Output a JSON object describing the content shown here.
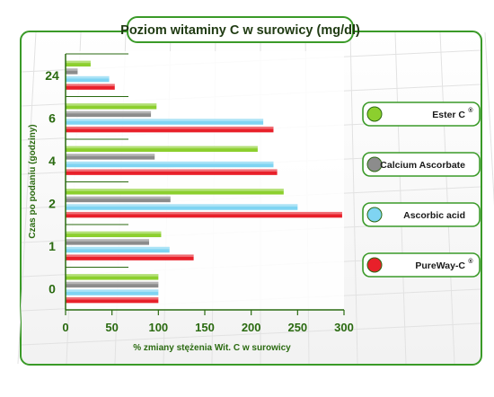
{
  "chart_data": {
    "type": "bar",
    "orientation": "horizontal",
    "title": "Poziom witaminy C w surowicy (mg/dl)",
    "xlabel": "% zmiany stężenia Wit. C w surowicy",
    "ylabel": "Czas po podaniu (godziny)",
    "xlim": [
      0,
      300
    ],
    "xticks": [
      0,
      50,
      100,
      150,
      200,
      250,
      300
    ],
    "categories": [
      "0",
      "1",
      "2",
      "4",
      "6",
      "24"
    ],
    "grid": false,
    "legend_position": "right",
    "series": [
      {
        "name": "Ester C",
        "superscript": "®",
        "color": "#8ccf2e",
        "values": [
          100,
          103,
          235,
          207,
          98,
          27
        ]
      },
      {
        "name": "Calcium Ascorbate",
        "superscript": "",
        "color": "#8c8c8c",
        "values": [
          100,
          90,
          113,
          96,
          92,
          13
        ]
      },
      {
        "name": "Ascorbic acid",
        "superscript": "",
        "color": "#7fd4f2",
        "values": [
          100,
          112,
          250,
          224,
          213,
          47
        ]
      },
      {
        "name": "PureWay-C",
        "superscript": "®",
        "color": "#e8202a",
        "values": [
          100,
          138,
          298,
          228,
          224,
          53
        ]
      }
    ]
  }
}
